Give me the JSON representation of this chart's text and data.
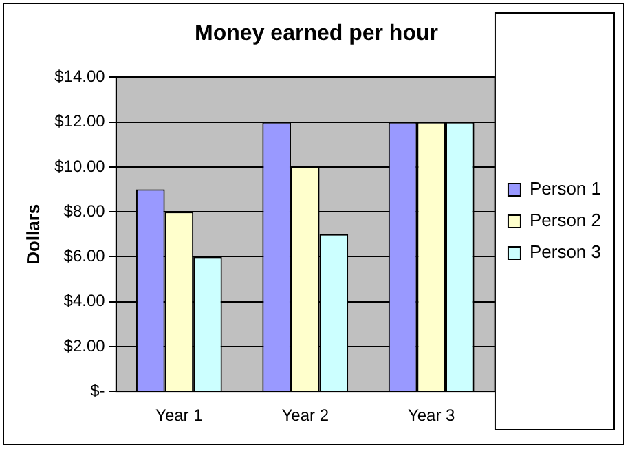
{
  "chart_data": {
    "type": "bar",
    "title": "Money earned per hour",
    "ylabel": "Dollars",
    "categories": [
      "Year 1",
      "Year 2",
      "Year 3"
    ],
    "series": [
      {
        "name": "Person 1",
        "color": "#9999ff",
        "values": [
          9,
          12,
          12
        ]
      },
      {
        "name": "Person 2",
        "color": "#ffffcc",
        "values": [
          8,
          10,
          12
        ]
      },
      {
        "name": "Person 3",
        "color": "#ccffff",
        "values": [
          6,
          7,
          12
        ]
      }
    ],
    "ylim": [
      0,
      14
    ],
    "yticks": [
      {
        "value": 0,
        "label": "$-"
      },
      {
        "value": 2,
        "label": "$2.00"
      },
      {
        "value": 4,
        "label": "$4.00"
      },
      {
        "value": 6,
        "label": "$6.00"
      },
      {
        "value": 8,
        "label": "$8.00"
      },
      {
        "value": 10,
        "label": "$10.00"
      },
      {
        "value": 12,
        "label": "$12.00"
      },
      {
        "value": 14,
        "label": "$14.00"
      }
    ],
    "grid": "y",
    "legend": "right"
  }
}
